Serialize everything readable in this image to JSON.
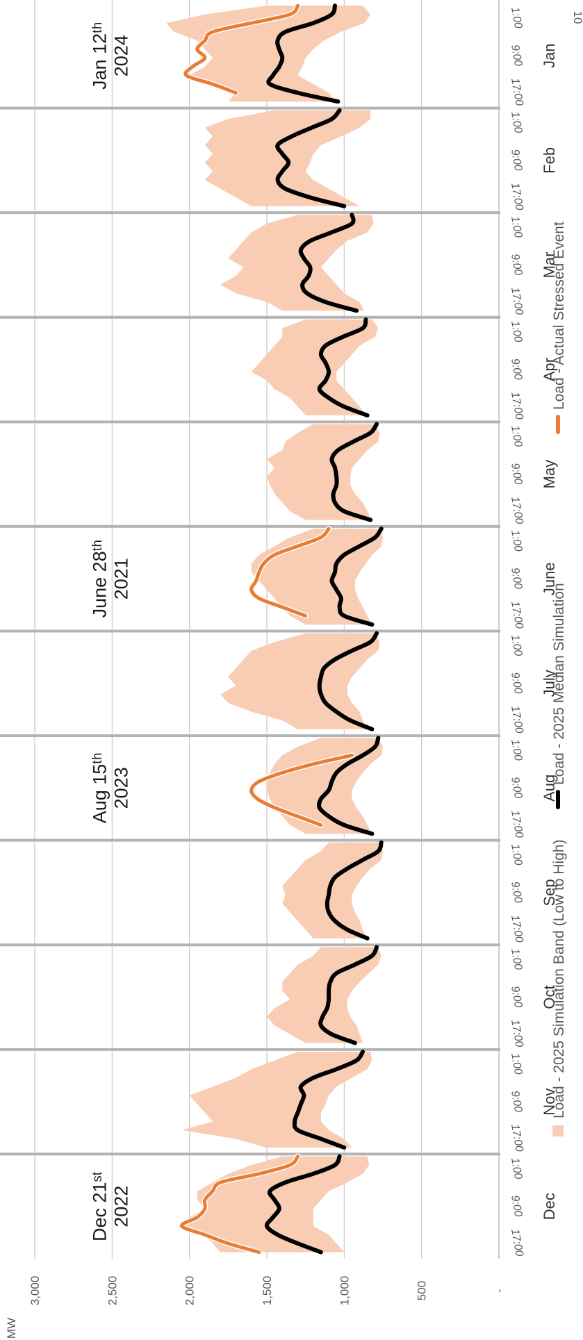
{
  "colors": {
    "band": "#F8CDB3",
    "median": "#000000",
    "actual": "#E87D36",
    "grid": "#C8C8C8",
    "divider": "#B4B4B4",
    "text": "#595959",
    "month_text": "#333333"
  },
  "chart_data": {
    "type": "area",
    "orientation": "rotated 90° clockwise (time runs top to bottom, MW increases right to left)",
    "ylabel": "MW",
    "ylim": [
      0,
      3000
    ],
    "yticks": [
      {
        "value": 3000,
        "label": "3,000"
      },
      {
        "value": 2500,
        "label": "2,500"
      },
      {
        "value": 2000,
        "label": "2,000"
      },
      {
        "value": 1500,
        "label": "1,500"
      },
      {
        "value": 1000,
        "label": "1,000"
      },
      {
        "value": 500,
        "label": "500"
      },
      {
        "value": 0,
        "label": "-"
      }
    ],
    "x_tick_labels": [
      "1:00",
      "9:00",
      "17:00"
    ],
    "corner_label": "10",
    "grid": true,
    "legend_position": "bottom",
    "hours": [
      1,
      3,
      5,
      7,
      9,
      11,
      13,
      15,
      17,
      19,
      21,
      23
    ],
    "months": [
      {
        "name": "Jan",
        "band_low": [
          880,
          830,
          870,
          1020,
          1130,
          1200,
          1250,
          1270,
          1300,
          1200,
          1100,
          1050
        ],
        "band_high": [
          1500,
          1900,
          2150,
          2100,
          1950,
          1900,
          1850,
          1900,
          2000,
          1900,
          1700,
          1750
        ],
        "median": [
          1060,
          1080,
          1200,
          1380,
          1430,
          1420,
          1400,
          1420,
          1460,
          1480,
          1300,
          1040
        ],
        "actual": [
          1300,
          1350,
          1600,
          1850,
          1900,
          1950,
          1900,
          1980,
          2020,
          1850,
          1700,
          null
        ],
        "annotation": [
          "Jan 12ᵗʰ",
          "2024"
        ]
      },
      {
        "name": "Feb",
        "band_low": [
          830,
          830,
          900,
          1020,
          1150,
          1200,
          1220,
          1250,
          1200,
          1100,
          1000,
          900
        ],
        "band_high": [
          1450,
          1750,
          1900,
          1850,
          1900,
          1850,
          1900,
          1850,
          1900,
          1800,
          1700,
          1600
        ],
        "median": [
          1030,
          1080,
          1210,
          1340,
          1430,
          1400,
          1360,
          1400,
          1430,
          1380,
          1220,
          1000
        ],
        "actual": [],
        "annotation": []
      },
      {
        "name": "Mar",
        "band_low": [
          820,
          810,
          850,
          980,
          1050,
          1100,
          1150,
          1100,
          1050,
          1000,
          900,
          870
        ],
        "band_high": [
          1300,
          1500,
          1600,
          1650,
          1700,
          1750,
          1650,
          1700,
          1800,
          1700,
          1500,
          1400
        ],
        "median": [
          950,
          950,
          1080,
          1220,
          1280,
          1260,
          1220,
          1230,
          1270,
          1240,
          1120,
          920
        ],
        "actual": [],
        "annotation": []
      },
      {
        "name": "Apr",
        "band_low": [
          820,
          780,
          800,
          900,
          950,
          1000,
          1050,
          1050,
          1000,
          950,
          900,
          860
        ],
        "band_high": [
          1250,
          1400,
          1400,
          1450,
          1500,
          1550,
          1600,
          1500,
          1450,
          1350,
          1300,
          1250
        ],
        "median": [
          860,
          880,
          1010,
          1120,
          1150,
          1120,
          1100,
          1120,
          1160,
          1100,
          1000,
          850
        ],
        "actual": [],
        "annotation": []
      },
      {
        "name": "May",
        "band_low": [
          800,
          770,
          780,
          850,
          900,
          950,
          960,
          960,
          930,
          880,
          850,
          820
        ],
        "band_high": [
          1200,
          1300,
          1380,
          1400,
          1500,
          1450,
          1500,
          1480,
          1450,
          1400,
          1350,
          1250
        ],
        "median": [
          790,
          830,
          940,
          1040,
          1080,
          1060,
          1050,
          1050,
          1070,
          1060,
          1000,
          830
        ],
        "actual": [],
        "annotation": []
      },
      {
        "name": "June",
        "band_low": [
          780,
          750,
          760,
          820,
          860,
          900,
          930,
          930,
          910,
          880,
          850,
          820
        ],
        "band_high": [
          1200,
          1350,
          1450,
          1550,
          1600,
          1600,
          1550,
          1500,
          1450,
          1400,
          1350,
          1250
        ],
        "median": [
          760,
          800,
          900,
          1000,
          1050,
          1060,
          1080,
          1050,
          1020,
          1030,
          1000,
          820
        ],
        "actual": [
          1100,
          1150,
          1300,
          1450,
          1520,
          1550,
          1570,
          1600,
          1550,
          1400,
          1250,
          null
        ],
        "annotation": [
          "June 28ᵗʰ",
          "2021"
        ]
      },
      {
        "name": "July",
        "band_low": [
          800,
          770,
          780,
          850,
          900,
          950,
          980,
          980,
          950,
          900,
          880,
          850
        ],
        "band_high": [
          1250,
          1450,
          1600,
          1650,
          1700,
          1750,
          1700,
          1800,
          1750,
          1600,
          1400,
          1300
        ],
        "median": [
          790,
          830,
          950,
          1060,
          1130,
          1150,
          1160,
          1150,
          1120,
          1050,
          960,
          820
        ],
        "actual": [],
        "annotation": []
      },
      {
        "name": "Aug",
        "band_low": [
          780,
          750,
          760,
          830,
          880,
          920,
          950,
          950,
          920,
          880,
          850,
          820
        ],
        "band_high": [
          1150,
          1300,
          1400,
          1450,
          1480,
          1500,
          1500,
          1480,
          1450,
          1400,
          1350,
          1250
        ],
        "median": [
          780,
          800,
          880,
          980,
          1050,
          1080,
          1100,
          1150,
          1160,
          1100,
          1000,
          820
        ],
        "actual": [
          null,
          null,
          950,
          1200,
          1400,
          1550,
          1600,
          1560,
          1450,
          1300,
          1150,
          null
        ],
        "annotation": [
          "Aug 15ᵗʰ",
          "2023"
        ]
      },
      {
        "name": "Sep",
        "band_low": [
          770,
          750,
          760,
          830,
          880,
          920,
          950,
          950,
          930,
          900,
          880,
          860
        ],
        "band_high": [
          1100,
          1150,
          1250,
          1300,
          1350,
          1400,
          1380,
          1400,
          1350,
          1300,
          1250,
          1200
        ],
        "median": [
          760,
          780,
          880,
          980,
          1060,
          1090,
          1100,
          1110,
          1100,
          1060,
          980,
          850
        ],
        "actual": [],
        "annotation": []
      },
      {
        "name": "Oct",
        "band_low": [
          780,
          760,
          780,
          840,
          900,
          950,
          980,
          980,
          960,
          920,
          900,
          880
        ],
        "band_high": [
          1150,
          1200,
          1300,
          1350,
          1400,
          1400,
          1350,
          1450,
          1500,
          1450,
          1350,
          1250
        ],
        "median": [
          790,
          820,
          930,
          1050,
          1090,
          1100,
          1100,
          1110,
          1140,
          1150,
          1080,
          930
        ],
        "actual": [],
        "annotation": []
      },
      {
        "name": "Nov",
        "band_low": [
          830,
          820,
          850,
          950,
          1050,
          1100,
          1120,
          1150,
          1150,
          1100,
          1000,
          950
        ],
        "band_high": [
          1300,
          1450,
          1600,
          1700,
          1850,
          2000,
          1950,
          1900,
          1850,
          2050,
          1700,
          1500
        ],
        "median": [
          880,
          920,
          1050,
          1200,
          1280,
          1260,
          1280,
          1300,
          1320,
          1300,
          1150,
          1000
        ],
        "actual": [],
        "annotation": []
      },
      {
        "name": "Dec",
        "band_low": [
          850,
          840,
          880,
          980,
          1100,
          1150,
          1200,
          1200,
          1200,
          1100,
          1050,
          1000
        ],
        "band_high": [
          1400,
          1600,
          1750,
          1850,
          1950,
          1950,
          1900,
          2000,
          2050,
          1900,
          1850,
          1800
        ],
        "median": [
          1030,
          1060,
          1200,
          1380,
          1480,
          1450,
          1420,
          1460,
          1500,
          1430,
          1300,
          1150
        ],
        "actual": [
          1300,
          1350,
          1550,
          1800,
          1850,
          1900,
          1900,
          1950,
          2050,
          1900,
          1750,
          1550
        ],
        "annotation": [
          "Dec 21ˢᵗ",
          "2022"
        ]
      }
    ],
    "legend": [
      {
        "key": "band",
        "label": "Load - 2025 Simulation Band (Low to High)"
      },
      {
        "key": "median",
        "label": "Load - 2025 Median Simulation"
      },
      {
        "key": "actual",
        "label": "Load - Actual Stressed Event"
      }
    ]
  }
}
